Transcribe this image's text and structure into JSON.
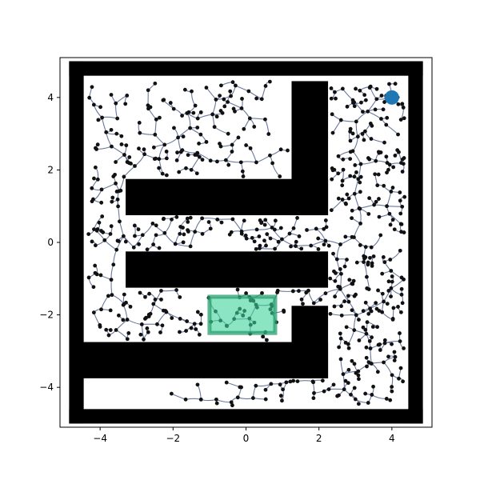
{
  "chart_data": {
    "type": "scatter",
    "title": "",
    "xlabel": "",
    "ylabel": "",
    "xlim": [
      -5.1,
      5.1
    ],
    "ylim": [
      -5.1,
      5.1
    ],
    "grid": false,
    "legend": "none",
    "x_ticks": [
      -4,
      -2,
      0,
      2,
      4
    ],
    "y_ticks": [
      -4,
      -2,
      0,
      2,
      4
    ],
    "x_tick_labels": [
      "−4",
      "−2",
      "0",
      "2",
      "4"
    ],
    "y_tick_labels": [
      "−4",
      "−2",
      "0",
      "2",
      "4"
    ],
    "obstacles": [
      [
        -4.85,
        -4.6,
        4.85,
        -5.0
      ],
      [
        -4.85,
        5.0,
        4.85,
        4.6
      ],
      [
        -4.85,
        5.0,
        -4.45,
        -5.0
      ],
      [
        4.45,
        5.0,
        4.85,
        -5.0
      ],
      [
        1.25,
        4.45,
        2.25,
        0.75
      ],
      [
        -3.3,
        1.75,
        2.25,
        0.75
      ],
      [
        -3.3,
        -0.25,
        2.25,
        -1.25
      ],
      [
        1.25,
        -1.75,
        2.25,
        -3.75
      ],
      [
        -4.5,
        -2.75,
        2.25,
        -3.75
      ]
    ],
    "start": {
      "x": 4.0,
      "y": 4.0
    },
    "goal_region": {
      "x0": -1.0,
      "y0": -2.5,
      "x1": 0.8,
      "y1": -1.5
    },
    "colors": {
      "obstacle": "#000000",
      "tree_edge": "#5a6a94",
      "node": "#111111",
      "start": "#1f77b4",
      "goal": "#3fd39a",
      "goal_border": "#2a9d6f"
    }
  }
}
